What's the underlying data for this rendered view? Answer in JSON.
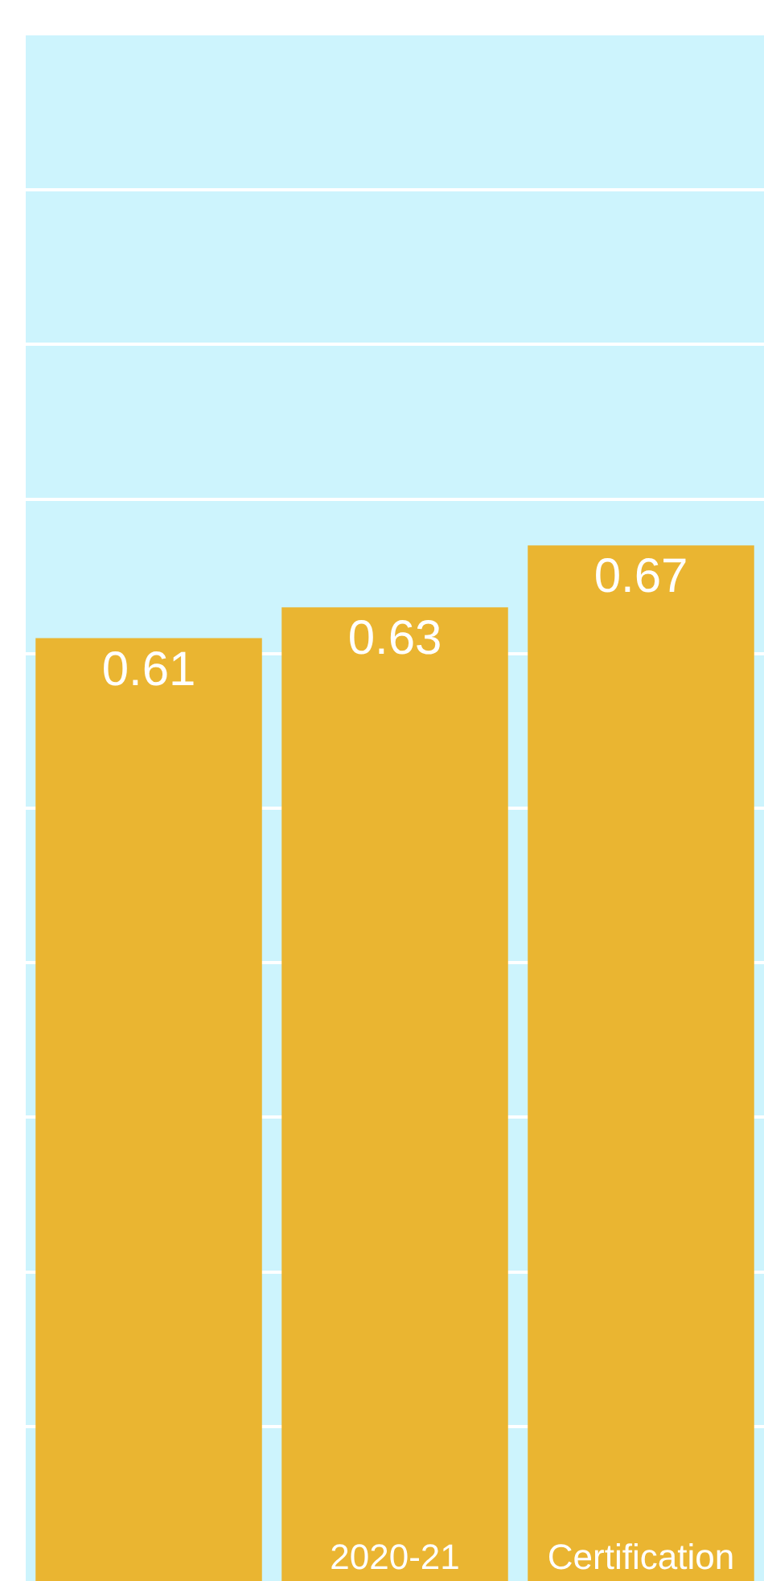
{
  "chart_data": {
    "type": "bar",
    "categories": [
      null,
      "2020-21",
      "Certification"
    ],
    "values": [
      0.61,
      0.63,
      0.67
    ],
    "color": "#eab531",
    "data_labels": true,
    "relative": false,
    "ylim": [
      0,
      1
    ],
    "yticks": [
      {
        "value": 0,
        "label": null
      },
      {
        "value": 0.1,
        "label": null
      },
      {
        "value": 0.2,
        "label": null
      },
      {
        "value": 0.3,
        "label": null
      },
      {
        "value": 0.4,
        "label": null
      },
      {
        "value": 0.5,
        "label": null
      },
      {
        "value": 0.6,
        "label": null
      },
      {
        "value": 0.7,
        "label": null
      },
      {
        "value": 0.8,
        "label": null
      },
      {
        "value": 0.9,
        "label": null
      },
      {
        "value": 1,
        "label": null
      }
    ],
    "bands": [
      {
        "axis": "y",
        "from": 0,
        "to": 1,
        "color": "#cdf4fd"
      }
    ],
    "grid": "y",
    "tick_labels": "x"
  }
}
